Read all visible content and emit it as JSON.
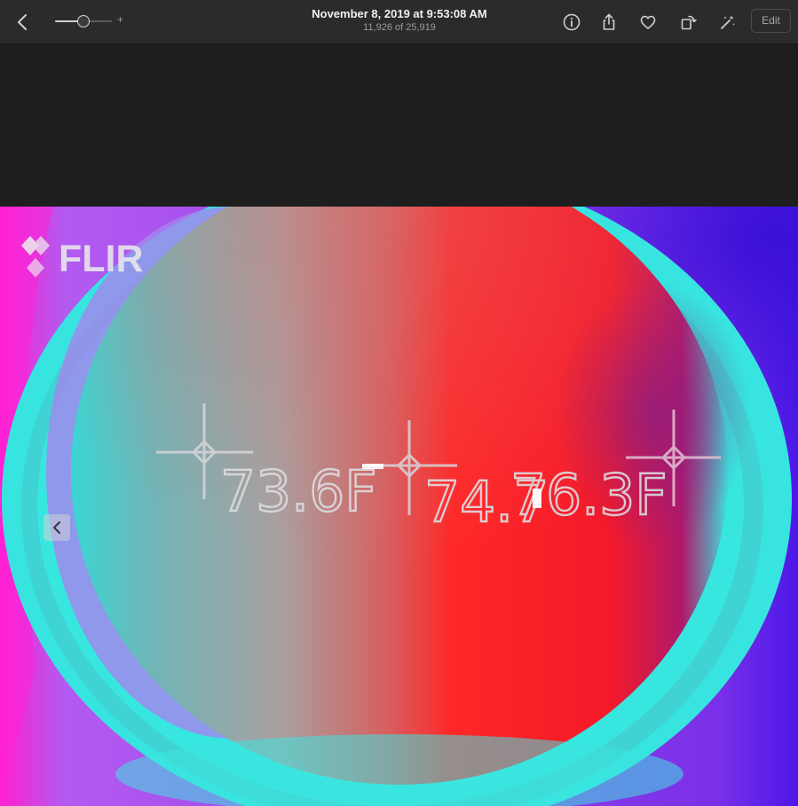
{
  "toolbar": {
    "title": "November 8, 2019 at 9:53:08 AM",
    "subtitle": "11,926 of 25,919",
    "edit_label": "Edit",
    "zoom_plus": "+",
    "zoom_level": 0.5,
    "icons": [
      "chevron-left-icon",
      "info-icon",
      "share-icon",
      "heart-icon",
      "rotate-icon",
      "magic-wand-icon"
    ]
  },
  "photo": {
    "logo_text": "FLIR",
    "readout_1": "73.6F",
    "readout_2": "74.7",
    "readout_3": "76.3F",
    "palette": {
      "cyan": "#39e6e0",
      "red": "#ff2a2a",
      "violet": "#a27cf0",
      "magenta": "#ff22d6",
      "blue": "#4c1be8"
    }
  }
}
